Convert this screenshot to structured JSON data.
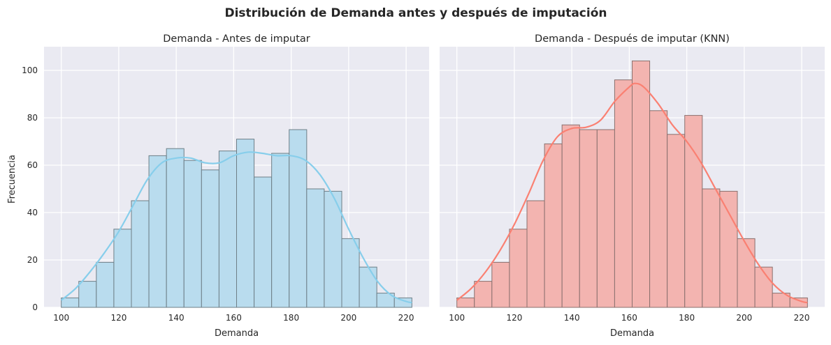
{
  "figure": {
    "title": "Distribución de Demanda antes y después de imputación",
    "ylabel": "Frecuencia"
  },
  "chart_data": [
    {
      "type": "bar",
      "subtype": "histogram+kde",
      "title": "Demanda - Antes de imputar",
      "xlabel": "Demanda",
      "ylabel": "Frecuencia",
      "xlim": [
        94,
        228
      ],
      "ylim": [
        0,
        110
      ],
      "xticks": [
        100,
        120,
        140,
        160,
        180,
        200,
        220
      ],
      "yticks": [
        0,
        20,
        40,
        60,
        80,
        100
      ],
      "show_ytick_labels": true,
      "grid": true,
      "bin_edges": [
        100.0,
        106.1,
        112.2,
        118.3,
        124.4,
        130.5,
        136.6,
        142.7,
        148.8,
        154.9,
        161.0,
        167.1,
        173.2,
        179.3,
        185.4,
        191.5,
        197.6,
        203.7,
        209.8,
        215.9,
        222.0
      ],
      "values": [
        4,
        11,
        19,
        33,
        45,
        64,
        67,
        62,
        58,
        66,
        71,
        55,
        65,
        75,
        50,
        49,
        29,
        17,
        6,
        4
      ],
      "kde": {
        "x": [
          100,
          105,
          110,
          115,
          120,
          125,
          130,
          135,
          140,
          145,
          150,
          155,
          160,
          165,
          170,
          175,
          180,
          185,
          190,
          195,
          200,
          205,
          210,
          215,
          220,
          222
        ],
        "y": [
          3,
          8,
          15,
          23,
          32,
          43,
          54,
          61,
          63,
          63,
          61,
          61,
          64,
          65.5,
          65,
          64,
          64,
          62,
          56,
          46,
          33,
          21,
          11,
          5,
          2.5,
          2
        ]
      },
      "color": "#87ceeb",
      "bar_fill": "#b9dcee",
      "edge_color": "#6e7f87"
    },
    {
      "type": "bar",
      "subtype": "histogram+kde",
      "title": "Demanda - Después de imputar (KNN)",
      "xlabel": "Demanda",
      "xlim": [
        94,
        228
      ],
      "ylim": [
        0,
        110
      ],
      "xticks": [
        100,
        120,
        140,
        160,
        180,
        200,
        220
      ],
      "yticks": [
        0,
        20,
        40,
        60,
        80,
        100
      ],
      "show_ytick_labels": false,
      "grid": true,
      "bin_edges": [
        100.0,
        106.1,
        112.2,
        118.3,
        124.4,
        130.5,
        136.6,
        142.7,
        148.8,
        154.9,
        161.0,
        167.1,
        173.2,
        179.3,
        185.4,
        191.5,
        197.6,
        203.7,
        209.8,
        215.9,
        222.0
      ],
      "values": [
        4,
        11,
        19,
        33,
        45,
        69,
        77,
        75,
        75,
        96,
        104,
        83,
        73,
        81,
        50,
        49,
        29,
        17,
        6,
        4
      ],
      "kde": {
        "x": [
          100,
          105,
          110,
          115,
          120,
          125,
          130,
          135,
          140,
          145,
          150,
          155,
          160,
          162,
          165,
          170,
          175,
          180,
          185,
          190,
          195,
          200,
          205,
          210,
          215,
          220,
          222
        ],
        "y": [
          3,
          8,
          15,
          24,
          35,
          48,
          62,
          72,
          75.5,
          76,
          79,
          87,
          93,
          94.5,
          93,
          86,
          77,
          70,
          61,
          50,
          39,
          28,
          18,
          10,
          5,
          2.5,
          2
        ]
      },
      "color": "#fa8072",
      "bar_fill": "#f3b4b0",
      "edge_color": "#8a706e"
    }
  ]
}
